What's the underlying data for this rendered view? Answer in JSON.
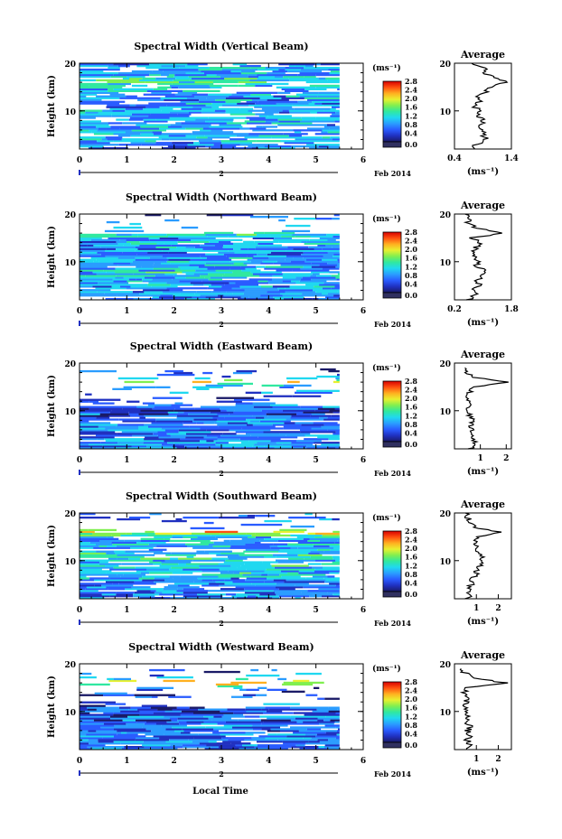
{
  "figure": {
    "xlabel": "Local Time",
    "date_label": "Feb 2014",
    "day_marker": "2",
    "colorbar_unit": "(ms⁻¹)",
    "colorbar_ticks": [
      "0.0",
      "0.4",
      "0.8",
      "1.2",
      "1.6",
      "2.0",
      "2.4",
      "2.8"
    ],
    "average_title": "Average",
    "average_xlabel": "(ms⁻¹)"
  },
  "colors": {
    "colormap": [
      "#1a1a66",
      "#2030c0",
      "#2a5cff",
      "#2a9cff",
      "#20d8f0",
      "#30e8a0",
      "#80ef50",
      "#e8f030",
      "#ffb020",
      "#ff5010",
      "#d80000"
    ],
    "below_range": "#303060",
    "profile_line": "#000000"
  },
  "chart_data": [
    {
      "type": "heatmap",
      "title": "Spectral Width (Vertical Beam)",
      "ylabel": "Height (km)",
      "xlim": [
        0,
        6
      ],
      "ylim": [
        2,
        20
      ],
      "x_ticks": [
        "0",
        "1",
        "2",
        "3",
        "4",
        "5",
        "6"
      ],
      "y_ticks": [
        "10",
        "20"
      ],
      "data_x_range": [
        0,
        5.5
      ],
      "value_range": [
        0,
        2.8
      ],
      "average_profile": {
        "xlim": [
          0.4,
          1.4
        ],
        "x_ticks": [
          "0.4",
          "1.4"
        ],
        "height": [
          2,
          3,
          4,
          5,
          6,
          7,
          8,
          9,
          10,
          11,
          12,
          13,
          14,
          15,
          16,
          17,
          18,
          19,
          20
        ],
        "values": [
          0.7,
          0.8,
          0.95,
          0.9,
          0.9,
          0.85,
          0.9,
          0.8,
          0.85,
          0.75,
          0.85,
          0.8,
          0.95,
          1.05,
          1.3,
          1.1,
          0.9,
          0.95,
          0.7
        ]
      }
    },
    {
      "type": "heatmap",
      "title": "Spectral Width (Northward Beam)",
      "ylabel": "Height (km)",
      "xlim": [
        0,
        6
      ],
      "ylim": [
        2,
        20
      ],
      "x_ticks": [
        "0",
        "1",
        "2",
        "3",
        "4",
        "5",
        "6"
      ],
      "y_ticks": [
        "10",
        "20"
      ],
      "data_x_range": [
        0,
        5.5
      ],
      "value_range": [
        0,
        2.8
      ],
      "average_profile": {
        "xlim": [
          0.2,
          1.8
        ],
        "x_ticks": [
          "0.2",
          "1.8"
        ],
        "height": [
          2,
          3,
          4,
          5,
          6,
          7,
          8,
          9,
          10,
          11,
          12,
          13,
          14,
          15,
          16,
          17,
          18,
          19,
          20
        ],
        "values": [
          0.6,
          0.8,
          0.7,
          0.9,
          0.8,
          1.0,
          1.1,
          0.8,
          0.9,
          0.8,
          0.7,
          0.8,
          0.9,
          0.7,
          1.6,
          0.8,
          0.6,
          0.6,
          0.5
        ]
      }
    },
    {
      "type": "heatmap",
      "title": "Spectral Width (Eastward Beam)",
      "ylabel": "Height (km)",
      "xlim": [
        0,
        6
      ],
      "ylim": [
        2,
        20
      ],
      "x_ticks": [
        "0",
        "1",
        "2",
        "3",
        "4",
        "5",
        "6"
      ],
      "y_ticks": [
        "10",
        "20"
      ],
      "data_x_range": [
        0,
        5.5
      ],
      "value_range": [
        0,
        2.8
      ],
      "average_profile": {
        "xlim": [
          0,
          2.2
        ],
        "x_ticks": [
          "1",
          "2"
        ],
        "height": [
          2,
          3,
          4,
          5,
          6,
          7,
          8,
          9,
          10,
          11,
          12,
          13,
          14,
          15,
          16,
          17,
          18,
          19
        ],
        "values": [
          0.6,
          0.7,
          0.8,
          0.7,
          0.7,
          0.6,
          0.7,
          0.6,
          0.5,
          0.6,
          0.5,
          0.5,
          0.6,
          0.8,
          2.0,
          0.7,
          0.5,
          0.4
        ]
      }
    },
    {
      "type": "heatmap",
      "title": "Spectral Width (Southward Beam)",
      "ylabel": "Height (km)",
      "xlim": [
        0,
        6
      ],
      "ylim": [
        2,
        20
      ],
      "x_ticks": [
        "0",
        "1",
        "2",
        "3",
        "4",
        "5",
        "6"
      ],
      "y_ticks": [
        "10",
        "20"
      ],
      "data_x_range": [
        0,
        5.5
      ],
      "value_range": [
        0,
        2.8
      ],
      "average_profile": {
        "xlim": [
          0,
          2.6
        ],
        "x_ticks": [
          "1",
          "2"
        ],
        "height": [
          2,
          3,
          4,
          5,
          6,
          7,
          8,
          9,
          10,
          11,
          12,
          13,
          14,
          15,
          16,
          17,
          18,
          19,
          20
        ],
        "values": [
          0.6,
          0.7,
          0.6,
          0.8,
          0.7,
          1.1,
          1.0,
          1.2,
          1.1,
          1.3,
          1.0,
          1.0,
          0.9,
          1.0,
          2.1,
          0.9,
          0.7,
          0.6,
          0.5
        ]
      }
    },
    {
      "type": "heatmap",
      "title": "Spectral Width (Westward Beam)",
      "ylabel": "Height (km)",
      "xlim": [
        0,
        6
      ],
      "ylim": [
        2,
        20
      ],
      "x_ticks": [
        "0",
        "1",
        "2",
        "3",
        "4",
        "5",
        "6"
      ],
      "y_ticks": [
        "10",
        "20"
      ],
      "data_x_range": [
        0,
        5.5
      ],
      "value_range": [
        0,
        2.8
      ],
      "average_profile": {
        "xlim": [
          0,
          2.6
        ],
        "x_ticks": [
          "1",
          "2"
        ],
        "height": [
          2,
          3,
          4,
          5,
          6,
          7,
          8,
          9,
          10,
          11,
          12,
          13,
          14,
          15,
          16,
          17,
          18,
          19
        ],
        "values": [
          0.6,
          0.7,
          0.6,
          0.7,
          0.6,
          0.7,
          0.5,
          0.6,
          0.5,
          0.5,
          0.6,
          0.5,
          0.4,
          0.6,
          2.3,
          0.9,
          0.5,
          0.3
        ]
      }
    }
  ]
}
